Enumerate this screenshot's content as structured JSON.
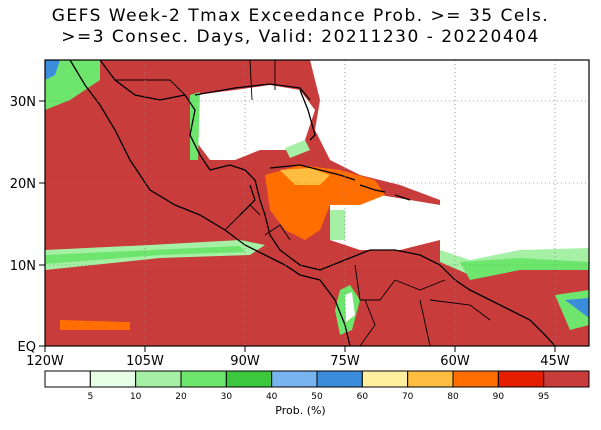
{
  "title": {
    "line1": "GEFS Week-2 Tmax Exceedance Prob. >= 35 Cels.",
    "line2": ">=3 Consec. Days, Valid: 20211230 - 20220404"
  },
  "axes": {
    "lon_labels": [
      "120W",
      "105W",
      "90W",
      "75W",
      "60W",
      "45W"
    ],
    "lat_labels": [
      "30N",
      "20N",
      "10N",
      "EQ"
    ]
  },
  "colorbar": {
    "unit_label": "Prob. (%)",
    "tick_labels": [
      "5",
      "10",
      "20",
      "30",
      "40",
      "50",
      "60",
      "70",
      "80",
      "90",
      "95"
    ],
    "colors": [
      "#ffffff",
      "#e6ffe6",
      "#a5f0a5",
      "#6ee66e",
      "#3cc83c",
      "#78b4f0",
      "#3c8cdc",
      "#fff0a0",
      "#ffbe40",
      "#ff6e00",
      "#e61e00",
      "#c83c3c"
    ]
  },
  "map_colors": {
    "dominant": "#c83c3c",
    "ocean_low": "#ffffff",
    "green": "#6ee66e",
    "light_green": "#a5f0a5",
    "blue": "#3c8cdc",
    "orange": "#ff6e00",
    "yellow": "#ffbe40"
  }
}
